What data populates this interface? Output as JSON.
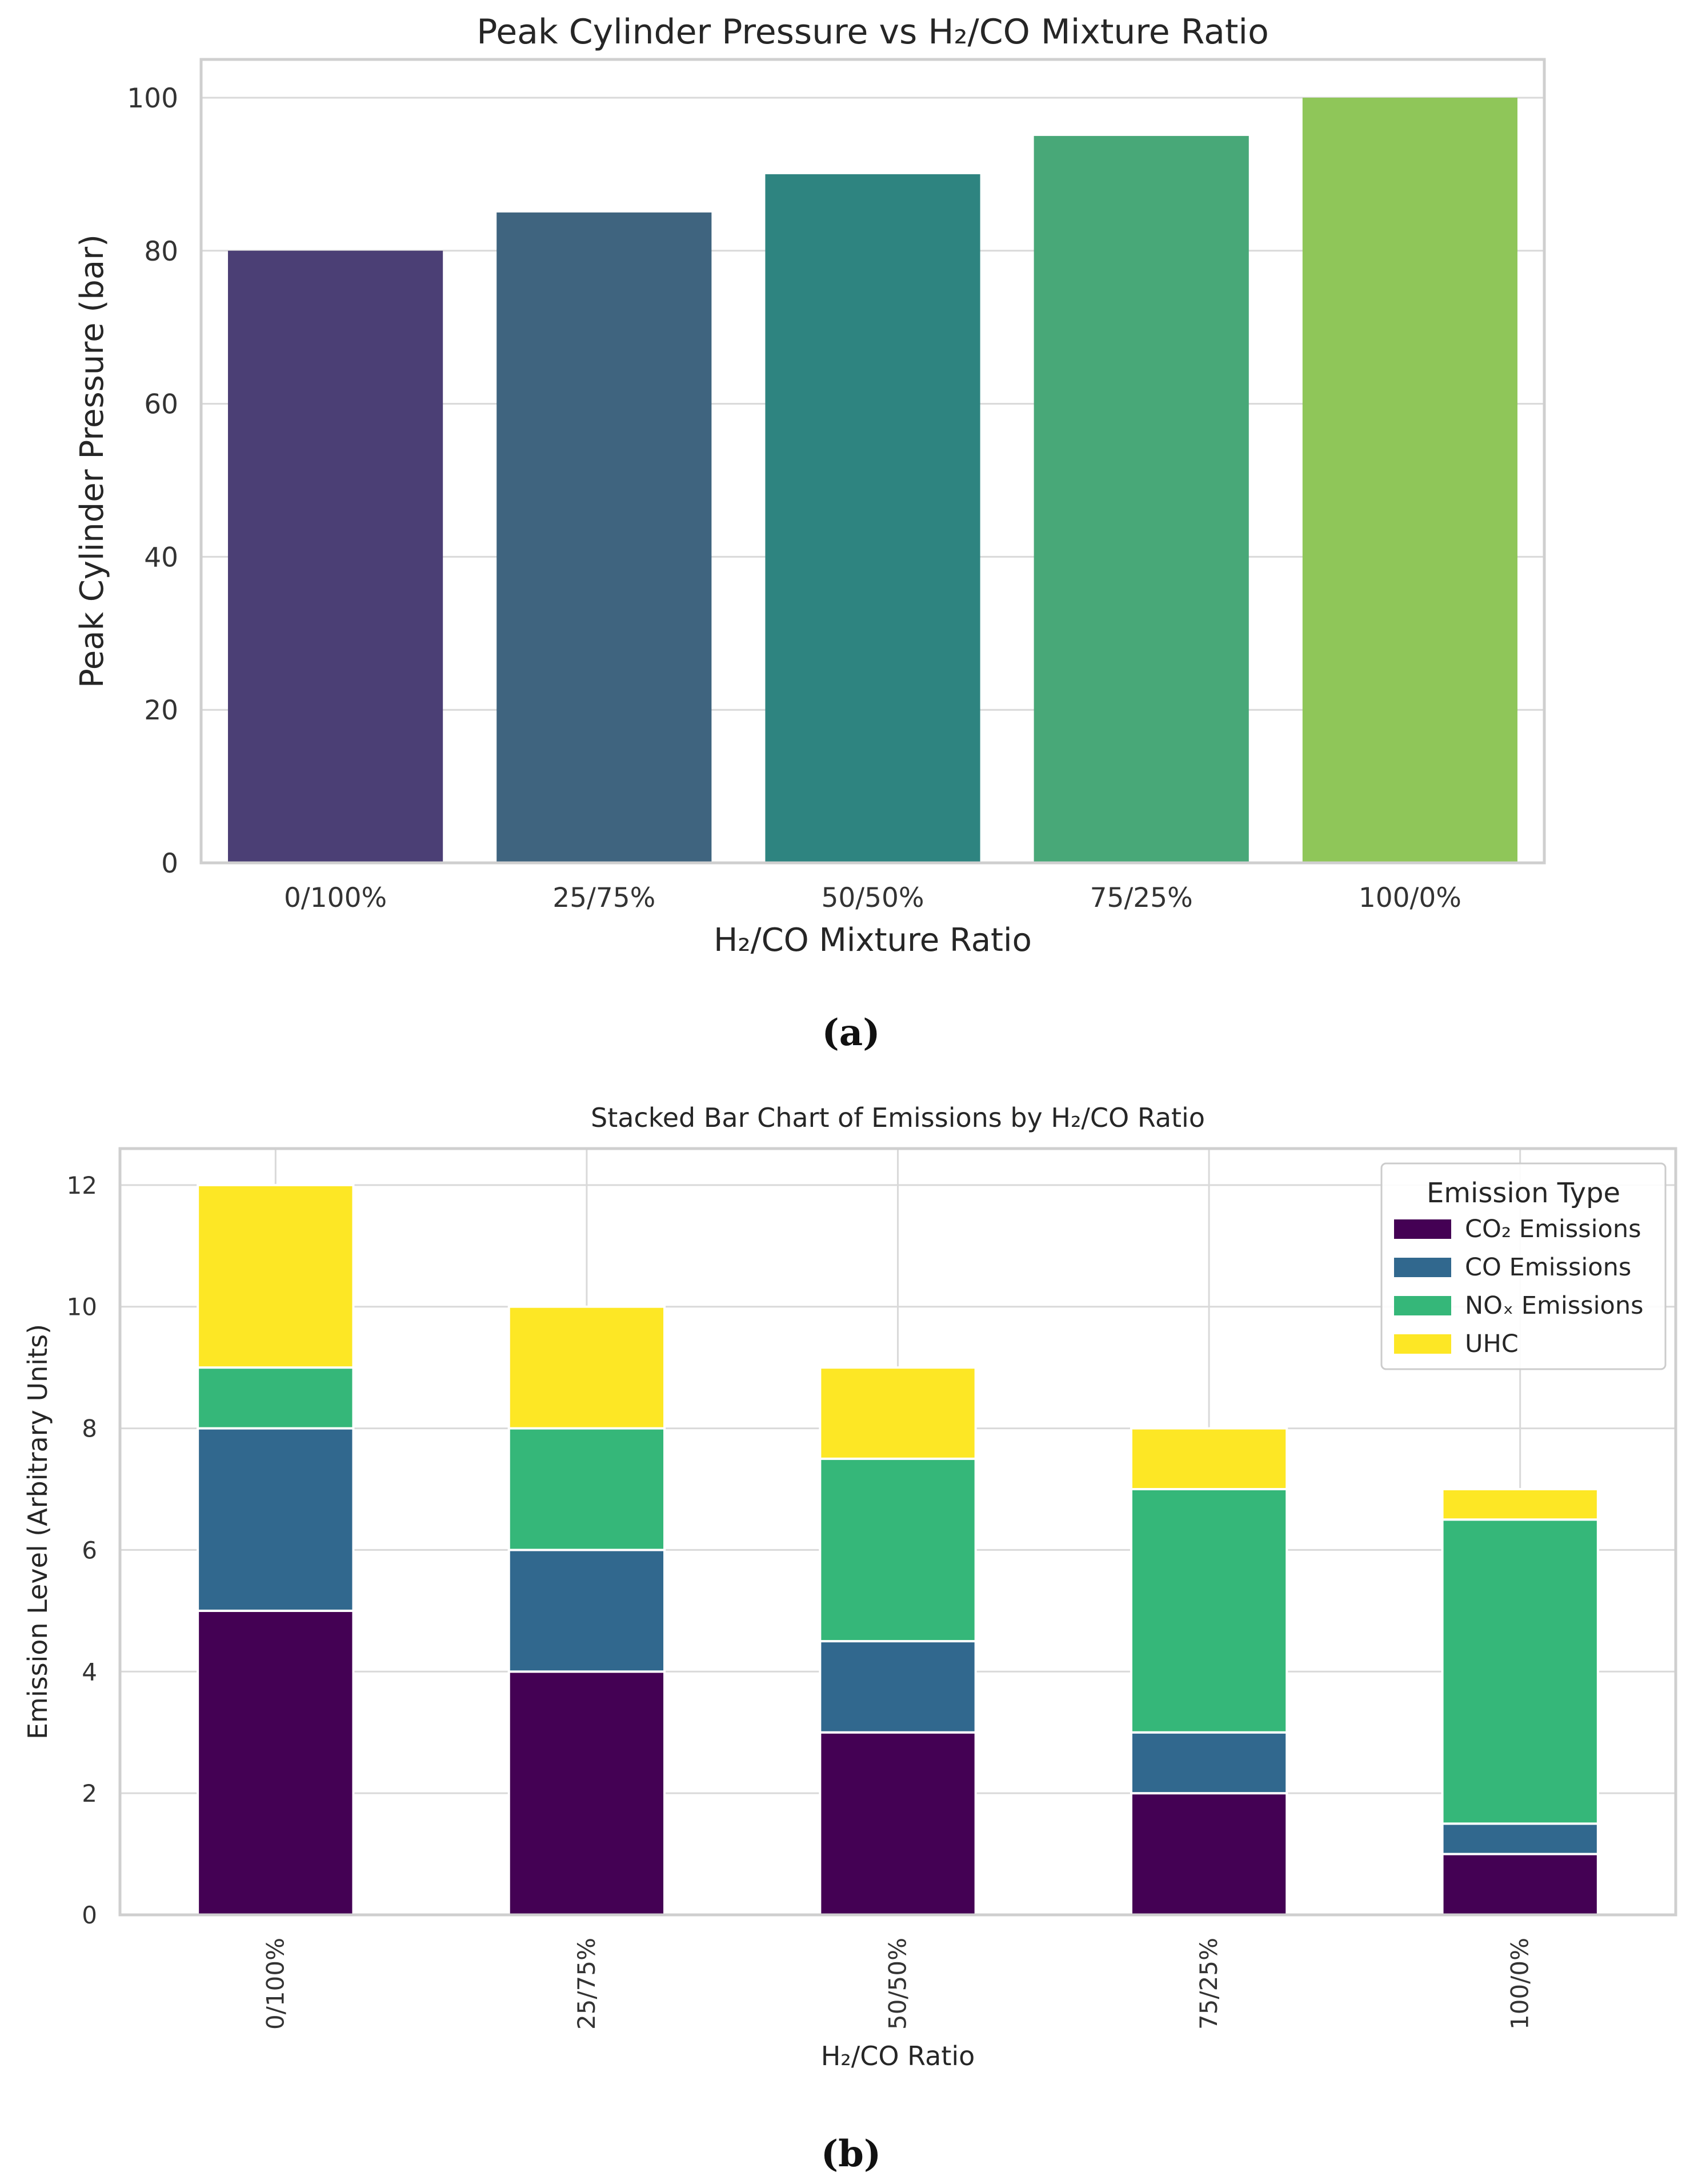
{
  "figure": {
    "caption_a": "(a)",
    "caption_b": "(b)"
  },
  "chart_data": [
    {
      "type": "bar",
      "title": "Peak Cylinder Pressure vs H₂/CO Mixture Ratio",
      "xlabel": "H₂/CO Mixture Ratio",
      "ylabel": "Peak Cylinder Pressure (bar)",
      "categories": [
        "0/100%",
        "25/75%",
        "50/50%",
        "75/25%",
        "100/0%"
      ],
      "values": [
        80,
        85,
        90,
        95,
        100
      ],
      "colors": [
        "#4b3f75",
        "#3f647f",
        "#2e8480",
        "#48a878",
        "#8fc659"
      ],
      "ylim": [
        0,
        105
      ],
      "yticks": [
        0,
        20,
        40,
        60,
        80,
        100
      ],
      "grid": true
    },
    {
      "type": "bar",
      "stacked": true,
      "title": "Stacked Bar Chart of Emissions by H₂/CO Ratio",
      "xlabel": "H₂/CO Ratio",
      "ylabel": "Emission Level (Arbitrary Units)",
      "categories": [
        "0/100%",
        "25/75%",
        "50/50%",
        "75/25%",
        "100/0%"
      ],
      "series": [
        {
          "name": "CO₂ Emissions",
          "color": "#440154",
          "values": [
            5,
            4,
            3,
            2,
            1
          ]
        },
        {
          "name": "CO Emissions",
          "color": "#31688e",
          "values": [
            3,
            2,
            1.5,
            1,
            0.5
          ]
        },
        {
          "name": "NOₓ Emissions",
          "color": "#35b779",
          "values": [
            1,
            2,
            3,
            4,
            5
          ]
        },
        {
          "name": "UHC",
          "color": "#fde725",
          "values": [
            3,
            2,
            1.5,
            1,
            0.5
          ]
        }
      ],
      "ylim": [
        0,
        12.6
      ],
      "yticks": [
        0,
        2,
        4,
        6,
        8,
        10,
        12
      ],
      "legend": {
        "title": "Emission Type",
        "placement": "top-right"
      },
      "grid": true,
      "xtick_rotation": 90
    }
  ]
}
